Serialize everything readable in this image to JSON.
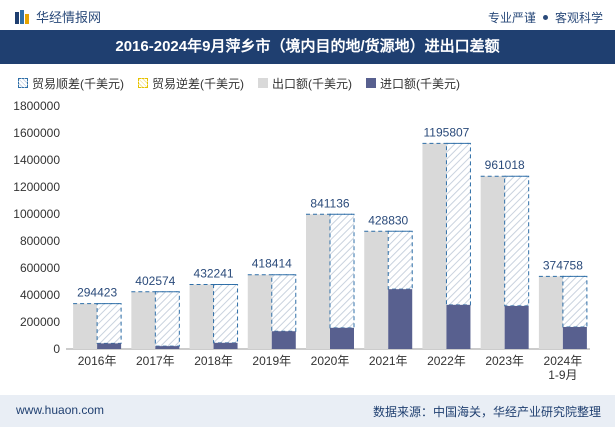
{
  "header": {
    "brand": "华经情报网",
    "tagline_left": "专业严谨",
    "tagline_right": "客观科学"
  },
  "title": "2016-2024年9月萍乡市（境内目的地/货源地）进出口差额",
  "footer": {
    "url": "www.huaon.com",
    "source": "数据来源：中国海关，华经产业研究院整理"
  },
  "colors": {
    "title_bg": "#1f3f70",
    "export": "#d9d9d9",
    "import": "#58608f",
    "surplus_line": "#2f6fa8",
    "deficit_line": "#e6c200",
    "label": "#2a4a7a"
  },
  "chart_data": {
    "type": "bar",
    "categories": [
      "2016年",
      "2017年",
      "2018年",
      "2019年",
      "2020年",
      "2021年",
      "2022年",
      "2023年",
      "2024年\n1-9月"
    ],
    "series": [
      {
        "name": "贸易顺差(千美元)",
        "values": [
          294423,
          402574,
          432241,
          418414,
          841136,
          428830,
          1195807,
          961018,
          374758
        ]
      },
      {
        "name": "贸易逆差(千美元)",
        "values": [
          0,
          0,
          0,
          0,
          0,
          0,
          0,
          0,
          0
        ]
      },
      {
        "name": "出口额(千美元)",
        "values": [
          336000,
          424000,
          478000,
          550000,
          998000,
          872000,
          1523000,
          1280000,
          538000
        ]
      },
      {
        "name": "进口额(千美元)",
        "values": [
          41600,
          21400,
          45800,
          131600,
          156900,
          443200,
          327200,
          319000,
          163200
        ]
      }
    ],
    "data_labels": [
      "294423",
      "402574",
      "432241",
      "418414",
      "841136",
      "428830",
      "1195807",
      "961018",
      "374758"
    ],
    "yticks": [
      "0",
      "200000",
      "400000",
      "600000",
      "800000",
      "1000000",
      "1200000",
      "1400000",
      "1600000",
      "1800000"
    ],
    "ylim": [
      0,
      1800000
    ],
    "grid": false,
    "legend_position": "top-left"
  }
}
